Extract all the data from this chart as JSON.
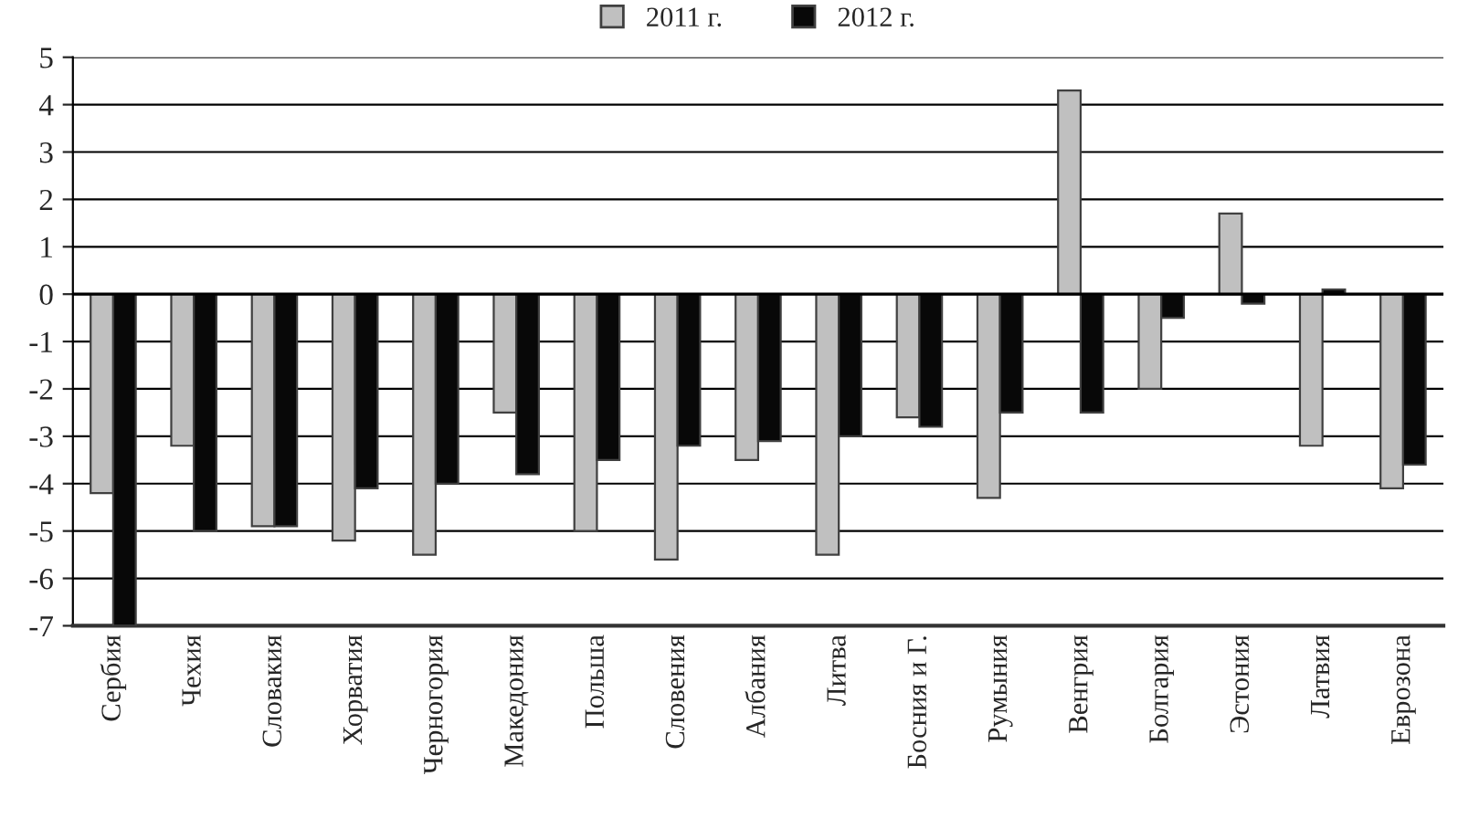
{
  "chart_data": {
    "type": "bar",
    "categories": [
      "Сербия",
      "Чехия",
      "Словакия",
      "Хорватия",
      "Черногория",
      "Македония",
      "Польша",
      "Словения",
      "Албания",
      "Литва",
      "Босния и Г.",
      "Румыния",
      "Венгрия",
      "Болгария",
      "Эстония",
      "Латвия",
      "Еврозона"
    ],
    "series": [
      {
        "name": "2011 г.",
        "color": "#c0c0c0",
        "values": [
          -4.2,
          -3.2,
          -4.9,
          -5.2,
          -5.5,
          -2.5,
          -5.0,
          -5.6,
          -3.5,
          -5.5,
          -2.6,
          -4.3,
          4.3,
          -2.0,
          1.7,
          -3.2,
          -4.1
        ]
      },
      {
        "name": "2012 г.",
        "color": "#080808",
        "values": [
          -7.0,
          -5.0,
          -4.9,
          -4.1,
          -4.0,
          -3.8,
          -3.5,
          -3.2,
          -3.1,
          -3.0,
          -2.8,
          -2.5,
          -2.5,
          -0.5,
          -0.2,
          0.1,
          -3.6
        ]
      }
    ],
    "ylim": [
      -7,
      5
    ],
    "yticks": [
      -7,
      -6,
      -5,
      -4,
      -3,
      -2,
      -1,
      0,
      1,
      2,
      3,
      4,
      5
    ],
    "grid": "y",
    "legend": "top"
  }
}
